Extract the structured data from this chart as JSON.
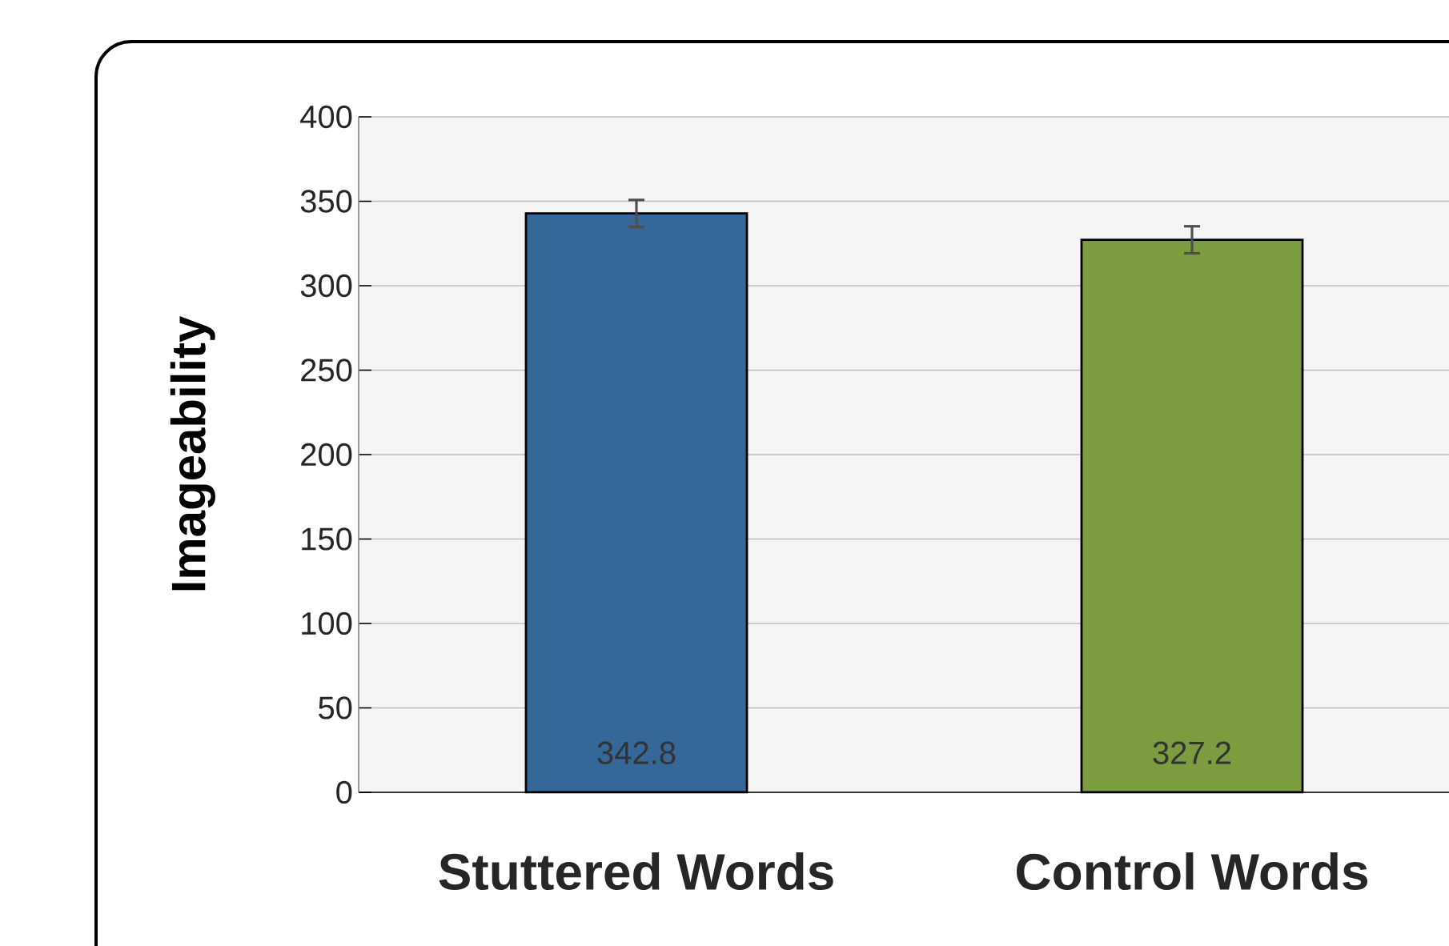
{
  "chart_data": {
    "type": "bar",
    "ylabel": "Imageability",
    "categories": [
      "Stuttered Words",
      "Control Words"
    ],
    "values": [
      342.8,
      327.2
    ],
    "colors": [
      "#356799",
      "#7b9c3f"
    ],
    "errors": [
      8,
      8
    ],
    "value_labels": [
      "342.8",
      "327.2"
    ],
    "ylim": [
      0,
      400
    ],
    "yticks": [
      0,
      50,
      100,
      150,
      200,
      250,
      300,
      350,
      400
    ],
    "grid": "y"
  }
}
